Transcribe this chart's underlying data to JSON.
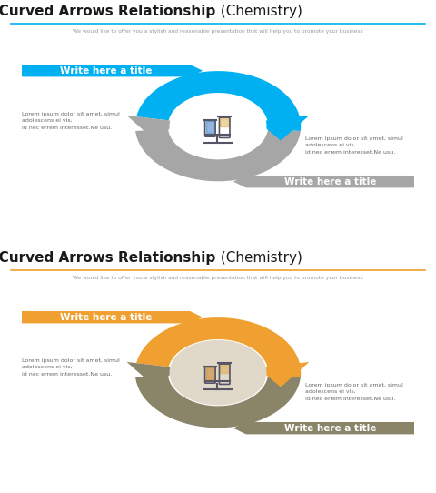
{
  "slides": [
    {
      "bg_color": "#ffffff",
      "accent_color": "#00b0f0",
      "secondary_color": "#a6a6a6",
      "title_underline_color": "#00b0f0"
    },
    {
      "bg_color": "#e0d8c8",
      "accent_color": "#f0a030",
      "secondary_color": "#8a8468",
      "title_underline_color": "#f0a030"
    }
  ],
  "title_bold": "Two Curved Arrows Relationship",
  "title_normal": " (Chemistry)",
  "subtitle": "We would like to offer you a stylish and reasonable presentation that will help you to promote your business",
  "label1": "Write here a title",
  "label2": "Write here a title",
  "body_text_left": "Lorem ipsum dolor sit amet, simul\nadolescens ei vis,\nid nec errem interesset.Ne usu.",
  "body_text_right": "Lorem ipsum dolor sit amet, simul\nadolescens ei vis,\nid nec errem interesset.Ne usu."
}
